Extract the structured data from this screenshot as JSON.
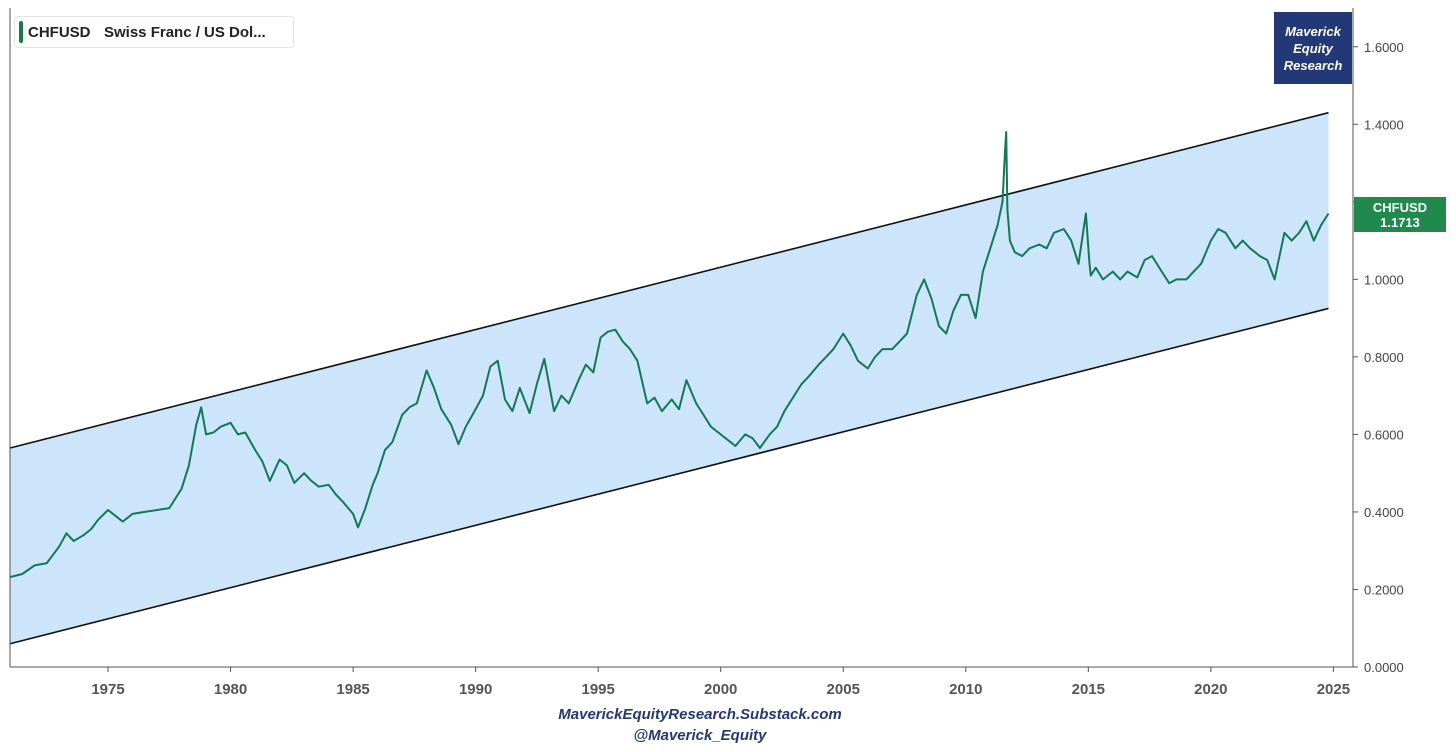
{
  "legend": {
    "symbol": "CHFUSD",
    "name": "Swiss Franc / US Dol...",
    "color": "#1a7a3e"
  },
  "brand": {
    "line1": "Maverick",
    "line2": "Equity",
    "line3": "Research",
    "bg": "#223877"
  },
  "price_tag": {
    "symbol": "CHFUSD",
    "value": "1.1713",
    "bg": "#1f8a4c"
  },
  "footer": {
    "line1": "MaverickEquityResearch.Substack.com",
    "line2": "@Maverick_Equity"
  },
  "chart_data": {
    "type": "line",
    "title": "CHFUSD Swiss Franc / US Dol...",
    "xlim": [
      1971.0,
      2025.8
    ],
    "ylim": [
      0,
      1.7
    ],
    "y_ticks": [
      "0.0000",
      "0.2000",
      "0.4000",
      "0.6000",
      "0.8000",
      "1.0000",
      "1.2000",
      "1.4000",
      "1.6000"
    ],
    "x_ticks": [
      "1975",
      "1980",
      "1985",
      "1990",
      "1995",
      "2000",
      "2005",
      "2010",
      "2015",
      "2020",
      "2025"
    ],
    "line_color": "#0f7a55",
    "channel": {
      "upper": [
        [
          1971.0,
          0.565
        ],
        [
          2024.8,
          1.43
        ]
      ],
      "lower": [
        [
          1971.0,
          0.06
        ],
        [
          2024.8,
          0.925
        ]
      ],
      "fill": "#cce5fb"
    },
    "series": [
      {
        "name": "CHFUSD",
        "x": [
          1971.0,
          1971.5,
          1972.0,
          1972.5,
          1973.0,
          1973.3,
          1973.6,
          1974.0,
          1974.3,
          1974.6,
          1975.0,
          1975.3,
          1975.6,
          1976.0,
          1976.5,
          1977.0,
          1977.5,
          1978.0,
          1978.3,
          1978.6,
          1978.8,
          1979.0,
          1979.3,
          1979.6,
          1980.0,
          1980.3,
          1980.6,
          1981.0,
          1981.3,
          1981.6,
          1982.0,
          1982.3,
          1982.6,
          1983.0,
          1983.3,
          1983.6,
          1984.0,
          1984.3,
          1984.6,
          1985.0,
          1985.2,
          1985.5,
          1985.8,
          1986.0,
          1986.3,
          1986.6,
          1987.0,
          1987.3,
          1987.6,
          1988.0,
          1988.3,
          1988.6,
          1989.0,
          1989.3,
          1989.6,
          1990.0,
          1990.3,
          1990.6,
          1990.9,
          1991.2,
          1991.5,
          1991.8,
          1992.2,
          1992.5,
          1992.8,
          1993.2,
          1993.5,
          1993.8,
          1994.2,
          1994.5,
          1994.8,
          1995.1,
          1995.4,
          1995.7,
          1996.0,
          1996.3,
          1996.6,
          1997.0,
          1997.3,
          1997.6,
          1998.0,
          1998.3,
          1998.6,
          1999.0,
          1999.3,
          1999.6,
          2000.0,
          2000.3,
          2000.6,
          2001.0,
          2001.3,
          2001.6,
          2002.0,
          2002.3,
          2002.6,
          2003.0,
          2003.3,
          2003.6,
          2004.0,
          2004.3,
          2004.6,
          2005.0,
          2005.3,
          2005.6,
          2006.0,
          2006.3,
          2006.6,
          2007.0,
          2007.3,
          2007.6,
          2008.0,
          2008.3,
          2008.6,
          2008.9,
          2009.2,
          2009.5,
          2009.8,
          2010.1,
          2010.4,
          2010.7,
          2011.0,
          2011.3,
          2011.5,
          2011.6,
          2011.65,
          2011.7,
          2011.8,
          2012.0,
          2012.3,
          2012.6,
          2013.0,
          2013.3,
          2013.6,
          2014.0,
          2014.3,
          2014.6,
          2014.9,
          2015.05,
          2015.1,
          2015.3,
          2015.6,
          2016.0,
          2016.3,
          2016.6,
          2017.0,
          2017.3,
          2017.6,
          2018.0,
          2018.3,
          2018.6,
          2019.0,
          2019.3,
          2019.6,
          2020.0,
          2020.3,
          2020.6,
          2021.0,
          2021.3,
          2021.6,
          2022.0,
          2022.3,
          2022.6,
          2022.8,
          2023.0,
          2023.3,
          2023.6,
          2023.9,
          2024.2,
          2024.5,
          2024.8
        ],
        "y": [
          0.232,
          0.24,
          0.262,
          0.268,
          0.31,
          0.345,
          0.325,
          0.34,
          0.355,
          0.38,
          0.405,
          0.39,
          0.375,
          0.395,
          0.4,
          0.405,
          0.41,
          0.46,
          0.52,
          0.625,
          0.67,
          0.6,
          0.605,
          0.62,
          0.63,
          0.6,
          0.605,
          0.56,
          0.53,
          0.48,
          0.535,
          0.52,
          0.475,
          0.5,
          0.48,
          0.465,
          0.47,
          0.445,
          0.425,
          0.395,
          0.36,
          0.41,
          0.47,
          0.5,
          0.56,
          0.58,
          0.65,
          0.67,
          0.68,
          0.765,
          0.72,
          0.665,
          0.625,
          0.575,
          0.62,
          0.665,
          0.7,
          0.775,
          0.79,
          0.69,
          0.66,
          0.72,
          0.655,
          0.73,
          0.795,
          0.66,
          0.7,
          0.68,
          0.74,
          0.78,
          0.76,
          0.85,
          0.865,
          0.87,
          0.84,
          0.82,
          0.79,
          0.68,
          0.695,
          0.66,
          0.69,
          0.665,
          0.74,
          0.68,
          0.65,
          0.62,
          0.6,
          0.585,
          0.57,
          0.6,
          0.59,
          0.565,
          0.6,
          0.62,
          0.66,
          0.7,
          0.73,
          0.75,
          0.78,
          0.8,
          0.82,
          0.86,
          0.83,
          0.79,
          0.77,
          0.8,
          0.82,
          0.82,
          0.84,
          0.86,
          0.96,
          1.0,
          0.95,
          0.88,
          0.86,
          0.92,
          0.96,
          0.96,
          0.9,
          1.02,
          1.08,
          1.14,
          1.2,
          1.33,
          1.38,
          1.18,
          1.1,
          1.07,
          1.06,
          1.08,
          1.09,
          1.08,
          1.12,
          1.13,
          1.1,
          1.04,
          1.17,
          1.04,
          1.01,
          1.03,
          1.0,
          1.02,
          1.0,
          1.02,
          1.005,
          1.05,
          1.06,
          1.02,
          0.99,
          1.0,
          1.0,
          1.02,
          1.04,
          1.1,
          1.13,
          1.12,
          1.08,
          1.1,
          1.08,
          1.06,
          1.05,
          1.0,
          1.06,
          1.12,
          1.1,
          1.12,
          1.15,
          1.1,
          1.14,
          1.17
        ]
      }
    ]
  }
}
